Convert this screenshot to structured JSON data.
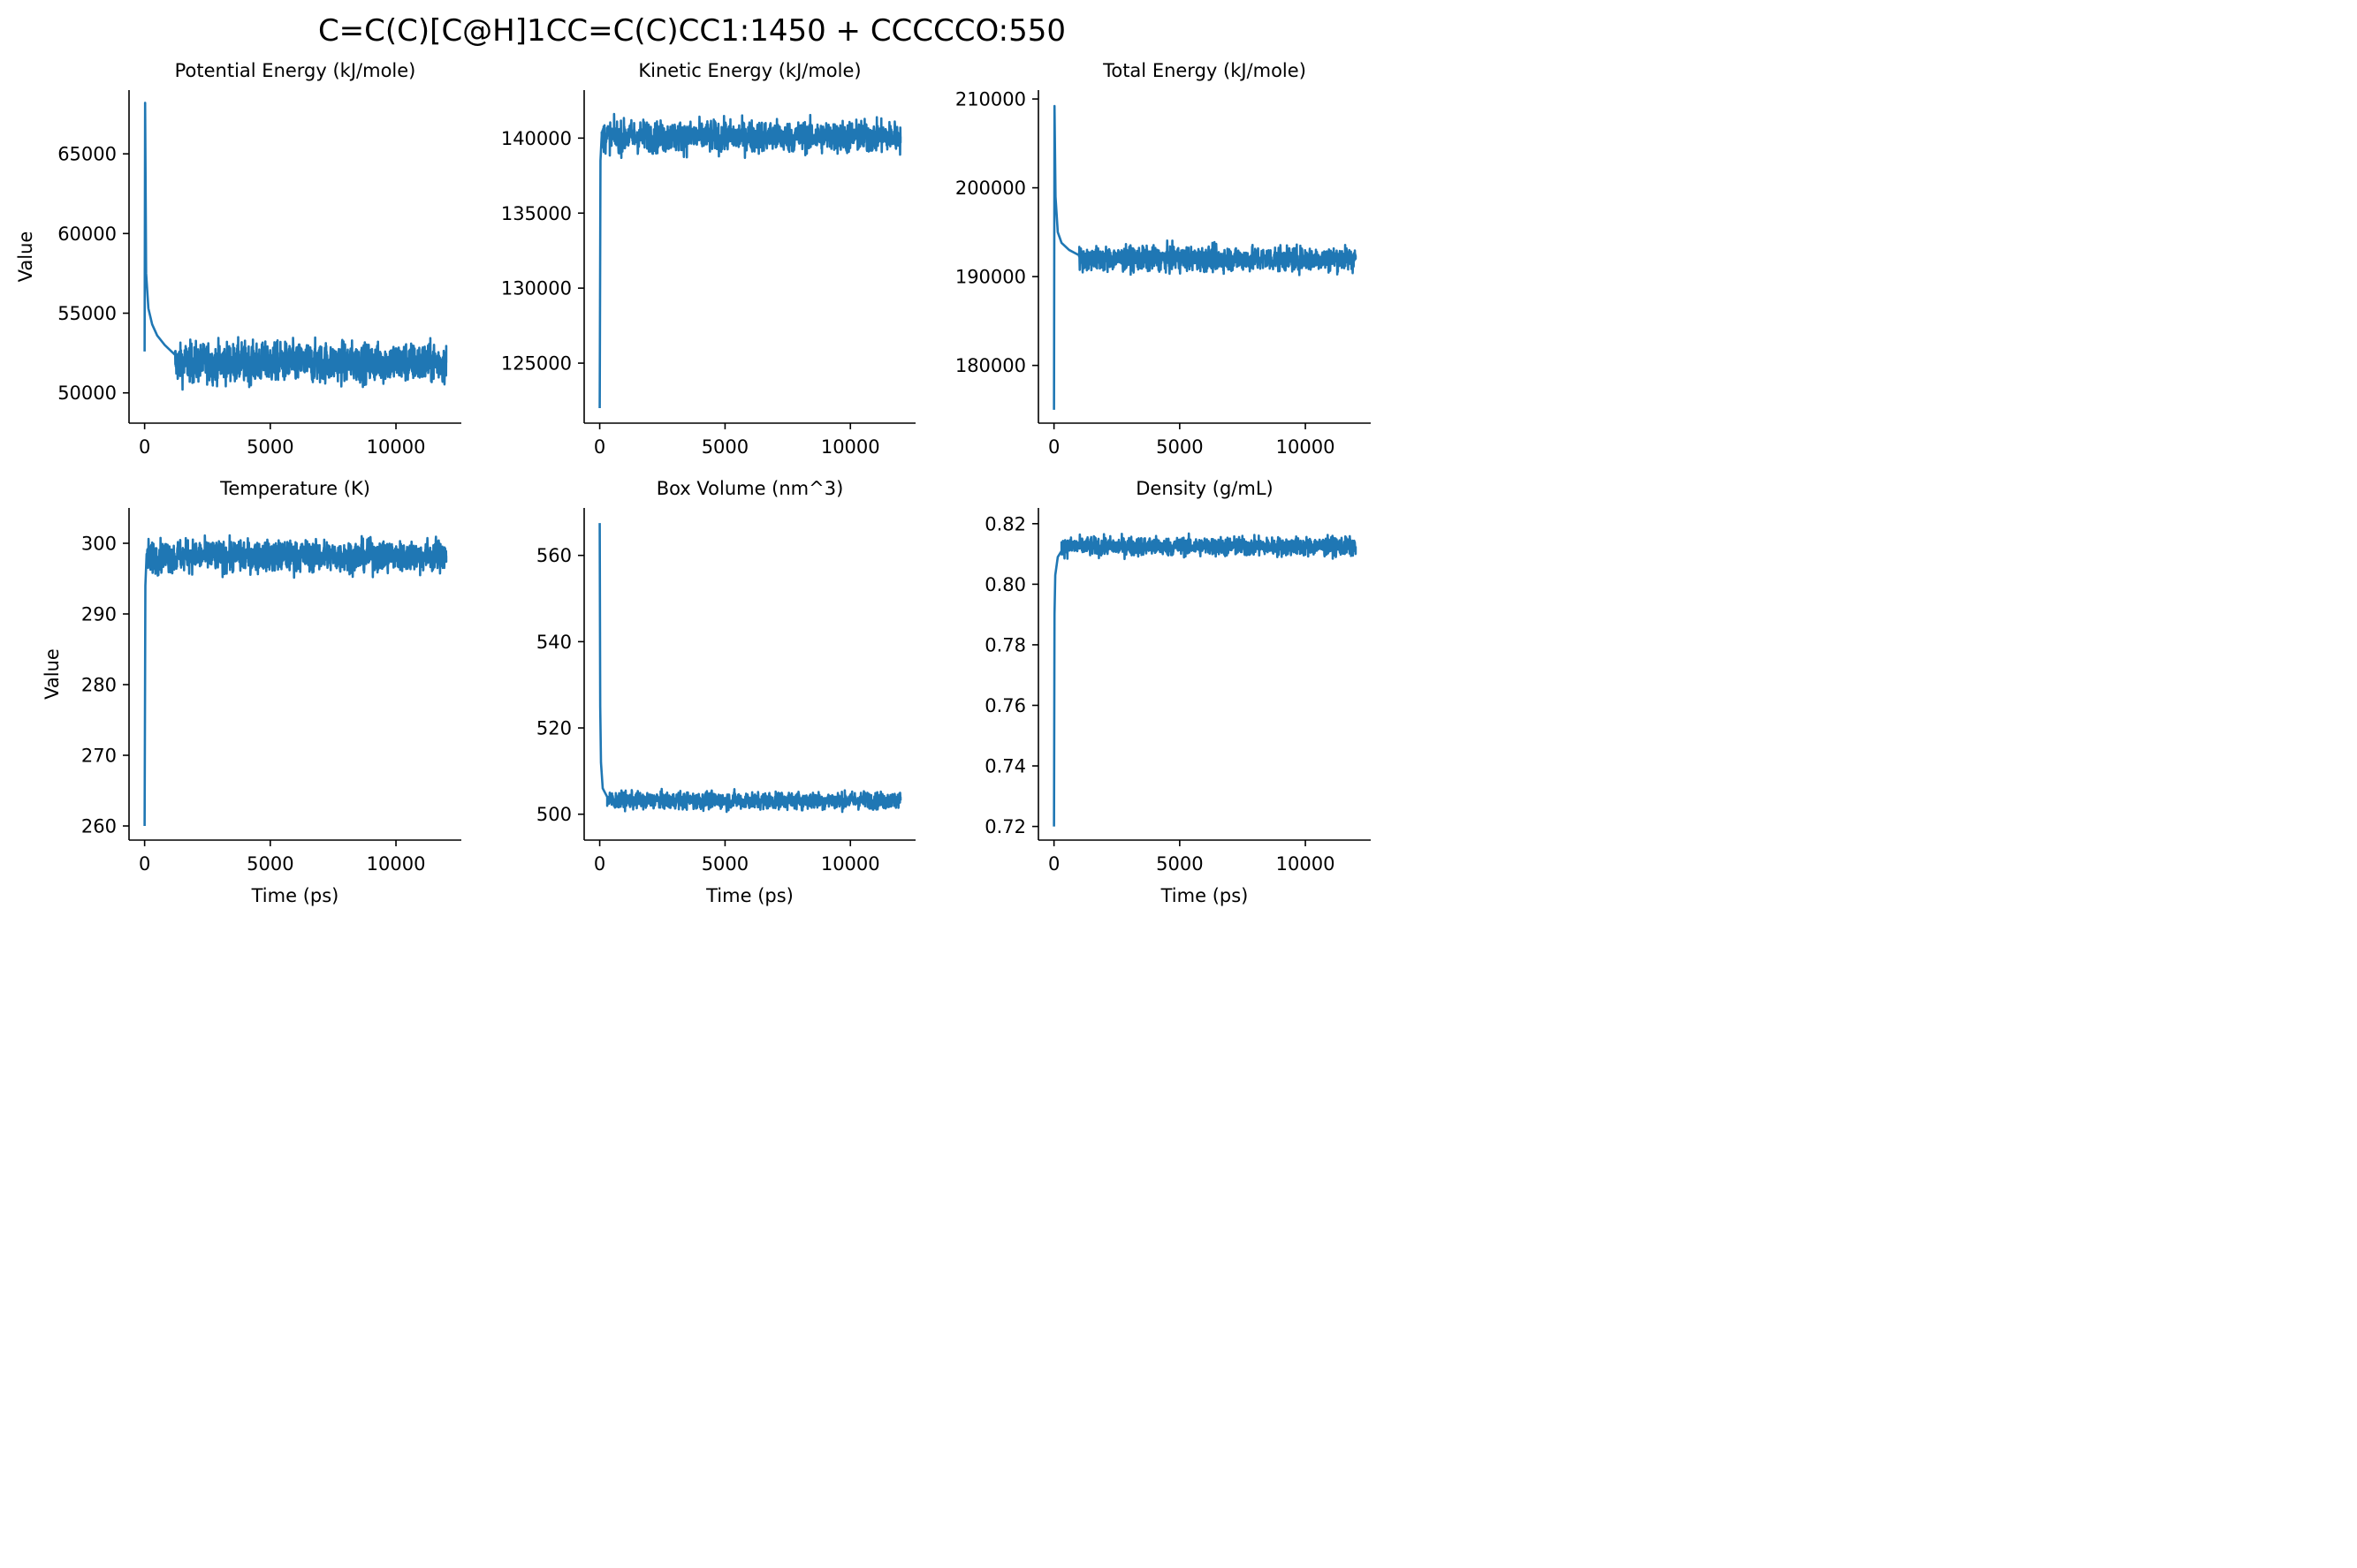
{
  "figure": {
    "title": "C=C(C)[C@H]1CC=C(C)CC1:1450 + CCCCCO:550"
  },
  "chart_data": [
    {
      "type": "line",
      "title": "Potential Energy (kJ/mole)",
      "xlabel": "",
      "ylabel": "Value",
      "xlim": [
        -620,
        12600
      ],
      "ylim": [
        48100,
        69000
      ],
      "xticks": [
        0,
        5000,
        10000
      ],
      "yticks": [
        50000,
        55000,
        60000,
        65000
      ],
      "series": [
        {
          "color": "#1f77b4",
          "start": [
            [
              0,
              52600
            ],
            [
              20,
              68200
            ],
            [
              60,
              57500
            ],
            [
              150,
              55300
            ],
            [
              300,
              54300
            ],
            [
              500,
              53600
            ],
            [
              800,
              53000
            ],
            [
              1200,
              52400
            ]
          ],
          "steady": {
            "x_from": 1200,
            "x_to": 12000,
            "mean": 51900,
            "amplitude": 1000,
            "min": 49100,
            "max": 54400
          }
        }
      ],
      "grid": false
    },
    {
      "type": "line",
      "title": "Kinetic Energy (kJ/mole)",
      "xlabel": "",
      "ylabel": "",
      "xlim": [
        -620,
        12600
      ],
      "ylim": [
        121000,
        143200
      ],
      "xticks": [
        0,
        5000,
        10000
      ],
      "yticks": [
        125000,
        130000,
        135000,
        140000
      ],
      "series": [
        {
          "color": "#1f77b4",
          "start": [
            [
              0,
              122000
            ],
            [
              30,
              138500
            ],
            [
              80,
              140200
            ]
          ],
          "steady": {
            "x_from": 80,
            "x_to": 12000,
            "mean": 140100,
            "amplitude": 850,
            "min": 138100,
            "max": 142200
          }
        }
      ],
      "grid": false
    },
    {
      "type": "line",
      "title": "Total Energy (kJ/mole)",
      "xlabel": "",
      "ylabel": "",
      "xlim": [
        -620,
        12600
      ],
      "ylim": [
        173500,
        211000
      ],
      "xticks": [
        0,
        5000,
        10000
      ],
      "yticks": [
        180000,
        190000,
        200000,
        210000
      ],
      "series": [
        {
          "color": "#1f77b4",
          "start": [
            [
              0,
              175000
            ],
            [
              20,
              209200
            ],
            [
              60,
              199000
            ],
            [
              150,
              195000
            ],
            [
              300,
              193800
            ],
            [
              600,
              193000
            ],
            [
              1000,
              192400
            ]
          ],
          "steady": {
            "x_from": 1000,
            "x_to": 12000,
            "mean": 192000,
            "amplitude": 1100,
            "min": 188300,
            "max": 195900
          }
        }
      ],
      "grid": false
    },
    {
      "type": "line",
      "title": "Temperature (K)",
      "xlabel": "Time (ps)",
      "ylabel": "Value",
      "xlim": [
        -620,
        12600
      ],
      "ylim": [
        258000,
        305000
      ],
      "ylim_note": "",
      "yaxis": [
        258,
        305
      ],
      "xticks": [
        0,
        5000,
        10000
      ],
      "yticks": [
        260,
        270,
        280,
        290,
        300
      ],
      "series": [
        {
          "color": "#1f77b4",
          "start": [
            [
              0,
              260
            ],
            [
              30,
              294
            ],
            [
              80,
              298.5
            ]
          ],
          "steady": {
            "x_from": 80,
            "x_to": 12000,
            "mean": 298.2,
            "amplitude": 1.8,
            "min": 293.6,
            "max": 302.7
          }
        }
      ],
      "grid": false
    },
    {
      "type": "line",
      "title": "Box Volume (nm^3)",
      "xlabel": "Time (ps)",
      "ylabel": "",
      "xlim": [
        -620,
        12600
      ],
      "ylim": [
        494,
        571
      ],
      "xticks": [
        0,
        5000,
        10000
      ],
      "yticks": [
        500,
        520,
        540,
        560
      ],
      "series": [
        {
          "color": "#1f77b4",
          "start": [
            [
              0,
              567.5
            ],
            [
              20,
              525
            ],
            [
              50,
              512
            ],
            [
              120,
              506
            ],
            [
              300,
              504
            ]
          ],
          "steady": {
            "x_from": 300,
            "x_to": 12000,
            "mean": 503.2,
            "amplitude": 1.6,
            "min": 498.5,
            "max": 508.3
          }
        }
      ],
      "grid": false
    },
    {
      "type": "line",
      "title": "Density (g/mL)",
      "xlabel": "Time (ps)",
      "ylabel": "",
      "xlim": [
        -620,
        12600
      ],
      "ylim": [
        0.7155,
        0.8252
      ],
      "xticks": [
        0,
        5000,
        10000
      ],
      "yticks": [
        0.72,
        0.74,
        0.76,
        0.78,
        0.8,
        0.82
      ],
      "ytick_labels": [
        "0.72",
        "0.74",
        "0.76",
        "0.78",
        "0.80",
        "0.82"
      ],
      "series": [
        {
          "color": "#1f77b4",
          "start": [
            [
              0,
              0.72
            ],
            [
              20,
              0.79
            ],
            [
              50,
              0.803
            ],
            [
              150,
              0.809
            ],
            [
              300,
              0.811
            ]
          ],
          "steady": {
            "x_from": 300,
            "x_to": 12000,
            "mean": 0.8125,
            "amplitude": 0.0025,
            "min": 0.8045,
            "max": 0.8205
          }
        }
      ],
      "grid": false
    }
  ]
}
